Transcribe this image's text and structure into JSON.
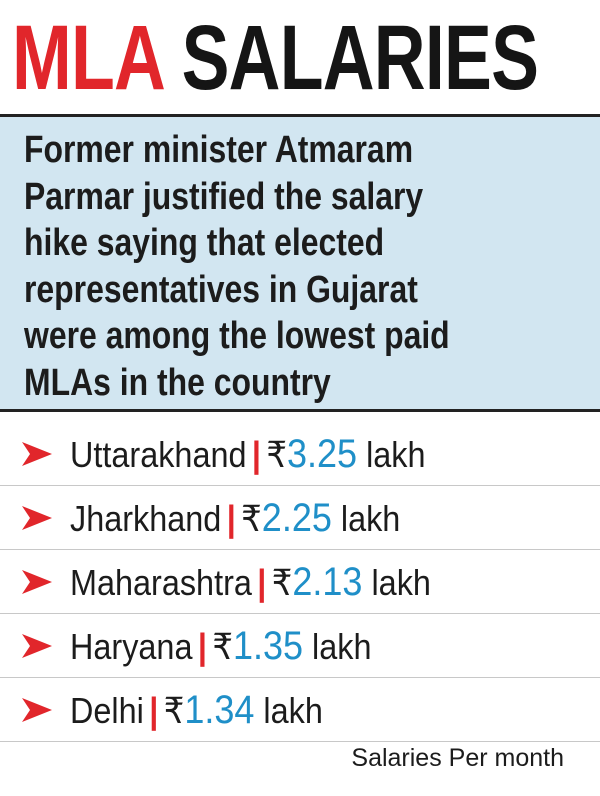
{
  "title": {
    "highlight": "MLA",
    "rest": "SALARIES"
  },
  "description": {
    "lines": [
      "Former minister Atmaram",
      "Parmar justified the salary",
      "hike saying that elected",
      "representatives in Gujarat",
      "were among the lowest paid",
      "MLAs in the country"
    ]
  },
  "list": {
    "separator": "|",
    "currency": "₹",
    "unit": "lakh",
    "items": [
      {
        "state": "Uttarakhand",
        "amount": "3.25"
      },
      {
        "state": "Jharkhand",
        "amount": "2.25"
      },
      {
        "state": "Maharashtra",
        "amount": "2.13"
      },
      {
        "state": "Haryana",
        "amount": "1.35"
      },
      {
        "state": "Delhi",
        "amount": "1.34"
      }
    ]
  },
  "footnote": "Salaries Per month"
}
